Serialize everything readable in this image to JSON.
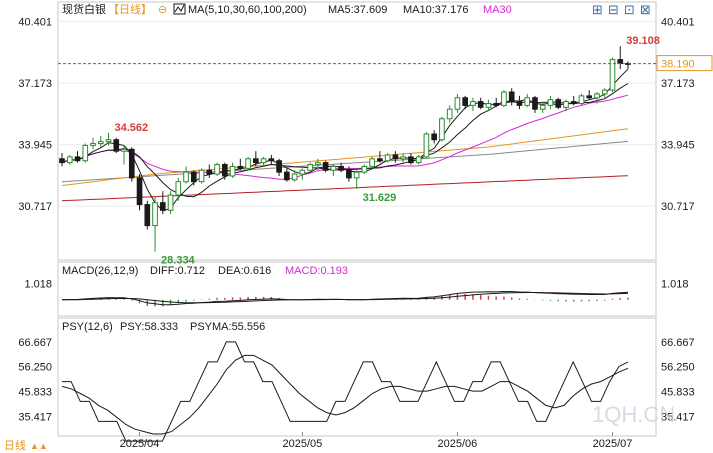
{
  "header": {
    "instrument": "现货白银",
    "period": "【日线】",
    "settings_glyph": "⊖",
    "ma_params": "MA(5,10,30,60,100,200)",
    "ma5": "MA5:37.609",
    "ma10": "MA10:37.176",
    "ma30": "MA30"
  },
  "toolbar": {
    "b1": "⊞",
    "b2": "⊟",
    "b3": "⊡",
    "b4": "⊠"
  },
  "panels": {
    "macd": {
      "title": "MACD(26,12,9)",
      "diff": "DIFF:0.712",
      "dea": "DEA:0.616",
      "macd": "MACD:0.193"
    },
    "psy": {
      "title": "PSY(12,6)",
      "psy": "PSY:58.333",
      "psyma": "PSYMA:55.556"
    }
  },
  "footer": {
    "period_tab": "日线",
    "arrows": "▲▲"
  },
  "watermark": "1QH.CN",
  "colors": {
    "up": "#2e8b2e",
    "down": "#1a1a1a",
    "ma5": "#1a1a1a",
    "ma10": "#1a1a1a",
    "ma30": "#d62ad6",
    "ma60": "#e6951e",
    "ma100": "#888888",
    "ma200": "#b22222",
    "current": "#e6951e",
    "high_label": "#d23c3c",
    "low_label": "#3a9a3a"
  },
  "chart_data": [
    {
      "type": "candlestick",
      "x_ticks": [
        "2025/04",
        "2025/05",
        "2025/06",
        "2025/07"
      ],
      "y_ticks": [
        40.401,
        37.173,
        33.945,
        30.717
      ],
      "ylim": [
        28.0,
        41.0
      ],
      "current_price": 38.19,
      "annotations": [
        {
          "text": "39.108",
          "value": 39.108
        },
        {
          "text": "34.562",
          "value": 34.562
        },
        {
          "text": "31.629",
          "value": 31.629
        },
        {
          "text": "28.334",
          "value": 28.334
        }
      ],
      "ohlc": [
        [
          33.2,
          33.5,
          32.8,
          33.0
        ],
        [
          33.0,
          33.4,
          32.9,
          33.3
        ],
        [
          33.3,
          33.6,
          33.0,
          33.1
        ],
        [
          33.1,
          34.0,
          33.0,
          33.9
        ],
        [
          33.9,
          34.3,
          33.7,
          34.0
        ],
        [
          34.0,
          34.4,
          33.8,
          34.1
        ],
        [
          34.1,
          34.56,
          33.9,
          34.2
        ],
        [
          34.2,
          34.3,
          33.5,
          33.6
        ],
        [
          33.6,
          33.9,
          32.9,
          33.7
        ],
        [
          33.7,
          33.8,
          32.0,
          32.2
        ],
        [
          32.2,
          32.4,
          30.5,
          30.8
        ],
        [
          30.8,
          31.0,
          29.5,
          29.7
        ],
        [
          29.7,
          31.2,
          28.33,
          30.9
        ],
        [
          30.9,
          31.5,
          30.3,
          30.5
        ],
        [
          30.5,
          31.5,
          30.3,
          31.3
        ],
        [
          31.3,
          32.2,
          31.0,
          32.0
        ],
        [
          32.0,
          32.8,
          31.9,
          32.5
        ],
        [
          32.5,
          32.6,
          31.8,
          32.0
        ],
        [
          32.0,
          32.7,
          31.9,
          32.6
        ],
        [
          32.6,
          32.9,
          32.2,
          32.4
        ],
        [
          32.4,
          33.0,
          32.3,
          32.9
        ],
        [
          32.9,
          33.0,
          32.1,
          32.3
        ],
        [
          32.3,
          33.0,
          32.2,
          32.8
        ],
        [
          32.8,
          33.2,
          32.6,
          32.7
        ],
        [
          32.7,
          33.3,
          32.6,
          33.2
        ],
        [
          33.2,
          33.6,
          32.8,
          33.0
        ],
        [
          33.0,
          33.3,
          32.8,
          33.2
        ],
        [
          33.2,
          33.4,
          32.9,
          33.1
        ],
        [
          33.1,
          33.2,
          32.3,
          32.5
        ],
        [
          32.5,
          32.7,
          32.0,
          32.1
        ],
        [
          32.1,
          32.6,
          32.0,
          32.4
        ],
        [
          32.4,
          32.7,
          32.1,
          32.6
        ],
        [
          32.6,
          33.0,
          32.5,
          32.9
        ],
        [
          32.9,
          33.2,
          32.6,
          33.0
        ],
        [
          33.0,
          33.1,
          32.5,
          32.6
        ],
        [
          32.6,
          32.9,
          32.3,
          32.8
        ],
        [
          32.8,
          33.0,
          32.5,
          32.6
        ],
        [
          32.6,
          32.8,
          32.0,
          32.2
        ],
        [
          32.2,
          32.6,
          31.63,
          32.5
        ],
        [
          32.5,
          32.9,
          32.4,
          32.8
        ],
        [
          32.8,
          33.3,
          32.7,
          33.2
        ],
        [
          33.2,
          33.6,
          33.0,
          33.1
        ],
        [
          33.1,
          33.5,
          33.0,
          33.4
        ],
        [
          33.4,
          33.6,
          33.0,
          33.2
        ],
        [
          33.2,
          33.5,
          33.0,
          33.3
        ],
        [
          33.3,
          33.5,
          32.9,
          33.0
        ],
        [
          33.0,
          33.4,
          32.9,
          33.3
        ],
        [
          33.3,
          34.6,
          33.2,
          34.5
        ],
        [
          34.5,
          34.7,
          34.0,
          34.2
        ],
        [
          34.2,
          35.4,
          34.1,
          35.3
        ],
        [
          35.3,
          36.0,
          35.1,
          35.8
        ],
        [
          35.8,
          36.6,
          35.6,
          36.4
        ],
        [
          36.4,
          36.5,
          35.8,
          36.0
        ],
        [
          36.0,
          36.4,
          35.7,
          36.2
        ],
        [
          36.2,
          36.4,
          35.8,
          35.9
        ],
        [
          35.9,
          36.3,
          35.7,
          36.1
        ],
        [
          36.1,
          36.4,
          35.9,
          36.0
        ],
        [
          36.0,
          36.8,
          35.9,
          36.7
        ],
        [
          36.7,
          36.9,
          36.0,
          36.2
        ],
        [
          36.2,
          36.5,
          35.8,
          36.0
        ],
        [
          36.0,
          36.6,
          35.9,
          36.4
        ],
        [
          36.4,
          36.5,
          35.6,
          35.8
        ],
        [
          35.8,
          36.2,
          35.6,
          36.0
        ],
        [
          36.0,
          36.5,
          35.8,
          36.3
        ],
        [
          36.3,
          36.4,
          35.8,
          35.9
        ],
        [
          35.9,
          36.3,
          35.7,
          36.2
        ],
        [
          36.2,
          36.5,
          36.0,
          36.1
        ],
        [
          36.1,
          36.6,
          36.0,
          36.5
        ],
        [
          36.5,
          36.8,
          36.3,
          36.4
        ],
        [
          36.4,
          36.7,
          36.1,
          36.6
        ],
        [
          36.6,
          36.9,
          36.4,
          36.8
        ],
        [
          36.8,
          38.5,
          36.7,
          38.4
        ],
        [
          38.4,
          39.1,
          37.9,
          38.2
        ],
        [
          38.2,
          38.3,
          37.9,
          38.19
        ]
      ]
    },
    {
      "type": "macd",
      "y_ticks": [
        1.018
      ],
      "ylim": [
        -0.9,
        1.5
      ]
    },
    {
      "type": "line",
      "y_ticks": [
        66.667,
        56.25,
        45.833,
        35.417
      ],
      "ylim": [
        28.0,
        70.0
      ],
      "psy": [
        50,
        50,
        41.7,
        41.7,
        33.3,
        33.3,
        33.3,
        25,
        25,
        25,
        25,
        25,
        33.3,
        41.7,
        41.7,
        50,
        58.3,
        58.3,
        66.7,
        66.7,
        58.3,
        58.3,
        50,
        50,
        41.7,
        33.3,
        33.3,
        33.3,
        33.3,
        33.3,
        41.7,
        41.7,
        50,
        58.3,
        58.3,
        50,
        50,
        41.7,
        41.7,
        41.7,
        50,
        58.3,
        50,
        41.7,
        41.7,
        50,
        50,
        58.3,
        58.3,
        50,
        41.7,
        41.7,
        33.3,
        33.3,
        41.7,
        50,
        58.3,
        50,
        41.7,
        41.7,
        50,
        56.3,
        58.3
      ],
      "psyma": [
        48,
        47,
        45,
        43,
        40,
        38,
        35,
        32,
        30,
        29,
        28,
        28,
        29,
        32,
        35,
        39,
        44,
        49,
        55,
        59,
        61,
        61,
        59,
        57,
        53,
        49,
        45,
        42,
        39,
        37,
        36,
        37,
        39,
        42,
        45,
        47,
        48,
        48,
        47,
        46,
        46,
        47,
        48,
        48,
        47,
        46,
        46,
        48,
        50,
        50,
        48,
        46,
        43,
        40,
        39,
        40,
        44,
        47,
        49,
        50,
        52,
        54,
        55.6
      ]
    }
  ]
}
